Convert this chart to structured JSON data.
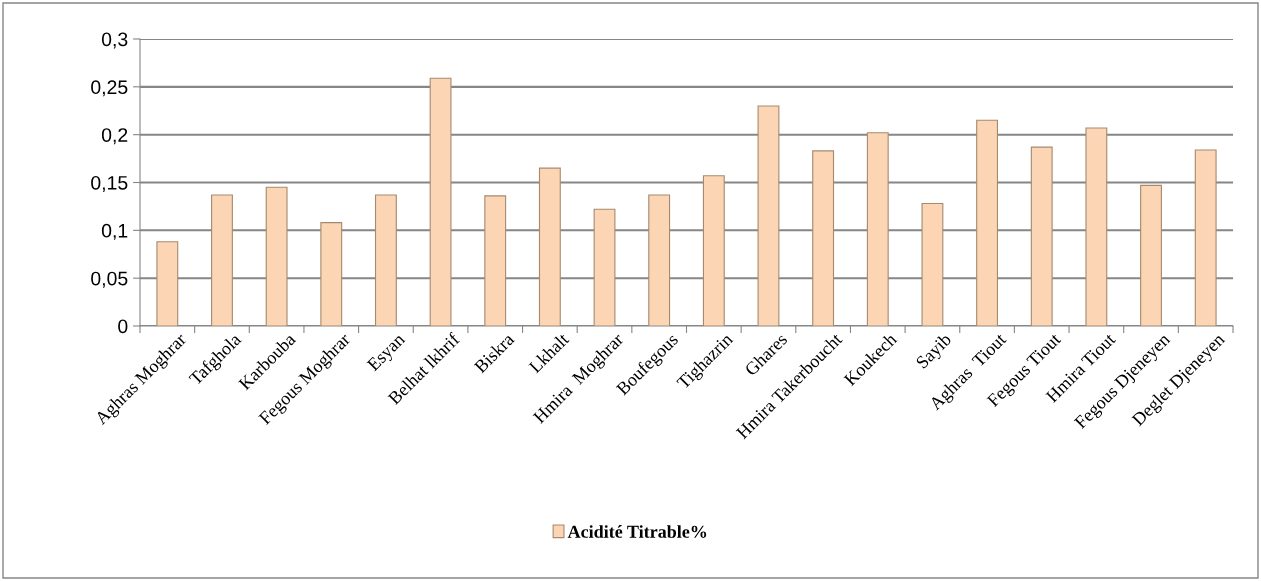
{
  "chart_data": {
    "type": "bar",
    "categories": [
      "Aghras Moghrar",
      "Tafghola",
      "Karbouba",
      "Fegous Moghrar",
      "Esyan",
      "Belhat lkhrif",
      "Biskra",
      "Lkhalt",
      "Hmira  Moghrar",
      "Boufegous",
      "Tighazrin",
      "Ghares",
      "Hmira Takerboucht",
      "Koukech",
      "Sayib",
      "Aghras  Tiout",
      "Fegous Tiout",
      "Hmira Tiout",
      "Fegous Djeneyen",
      "Deglet Djeneyen"
    ],
    "series": [
      {
        "name": "Acidité Titrable%",
        "color": "#fcd5b4",
        "values": [
          0.088,
          0.137,
          0.145,
          0.108,
          0.137,
          0.259,
          0.136,
          0.165,
          0.122,
          0.137,
          0.157,
          0.23,
          0.183,
          0.202,
          0.128,
          0.215,
          0.187,
          0.207,
          0.147,
          0.184
        ]
      }
    ],
    "ylim": [
      0,
      0.3
    ],
    "yticks": [
      {
        "value": 0,
        "label": "0"
      },
      {
        "value": 0.05,
        "label": "0,05"
      },
      {
        "value": 0.1,
        "label": "0,1"
      },
      {
        "value": 0.15,
        "label": "0,15"
      },
      {
        "value": 0.2,
        "label": "0,2"
      },
      {
        "value": 0.25,
        "label": "0,25"
      },
      {
        "value": 0.3,
        "label": "0,3"
      }
    ],
    "grid": "y",
    "legend": "bottom"
  }
}
